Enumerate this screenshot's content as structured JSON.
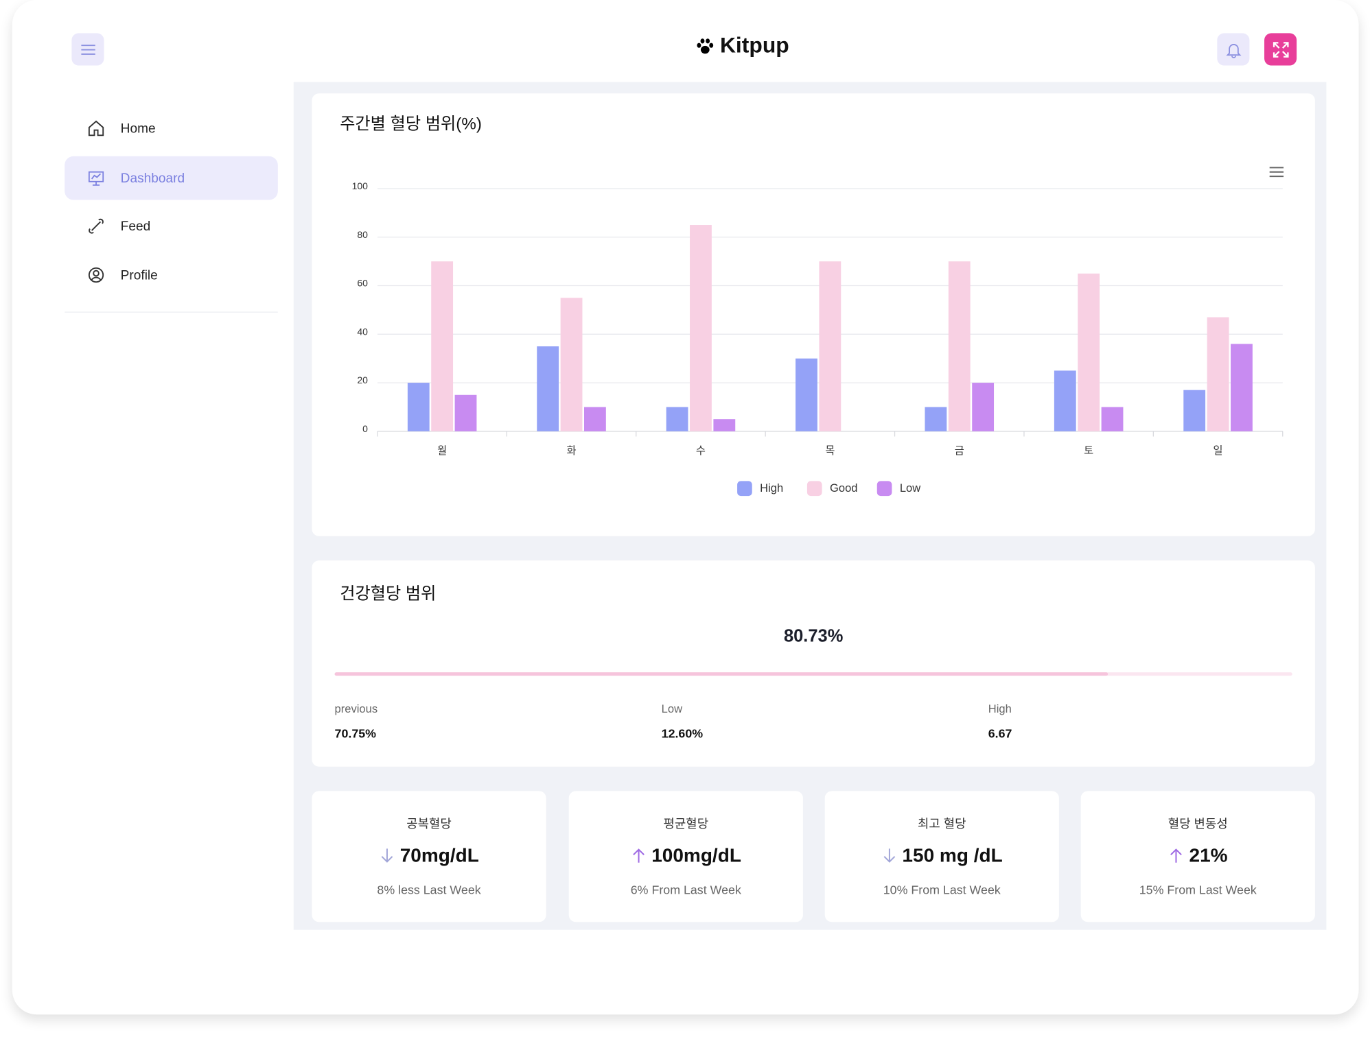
{
  "header": {
    "title": "Kitpup"
  },
  "nav": {
    "items": [
      {
        "label": "Home"
      },
      {
        "label": "Dashboard"
      },
      {
        "label": "Feed"
      },
      {
        "label": "Profile"
      }
    ]
  },
  "chart_data": {
    "type": "bar",
    "title": "주간별 혈당 범위(%)",
    "categories": [
      "월",
      "화",
      "수",
      "목",
      "금",
      "토",
      "일"
    ],
    "series": [
      {
        "name": "High",
        "color": "#94a2f7",
        "values": [
          20,
          35,
          10,
          30,
          10,
          25,
          17
        ]
      },
      {
        "name": "Good",
        "color": "#f8d0e3",
        "values": [
          70,
          55,
          85,
          70,
          70,
          65,
          47
        ]
      },
      {
        "name": "Low",
        "color": "#c88bf1",
        "values": [
          15,
          10,
          5,
          0,
          20,
          10,
          36
        ]
      }
    ],
    "ylim": [
      0,
      100
    ],
    "yticks": [
      0,
      20,
      40,
      60,
      80,
      100
    ],
    "grid": true,
    "legend": "bottom"
  },
  "health": {
    "title": "건강혈당 범위",
    "progress": {
      "value": 80.73,
      "label": "80.73%"
    },
    "stats": [
      {
        "label": "previous",
        "value": "70.75%"
      },
      {
        "label": "Low",
        "value": "12.60%"
      },
      {
        "label": "High",
        "value": "6.67"
      }
    ]
  },
  "cards": [
    {
      "title": "공복혈당",
      "value": "70mg/dL",
      "trend": "down",
      "note": "8% less Last Week"
    },
    {
      "title": "평균혈당",
      "value": "100mg/dL",
      "trend": "up",
      "note": "6% From Last Week"
    },
    {
      "title": "최고 혈당",
      "value": "150 mg /dL",
      "trend": "down",
      "note": "10% From Last Week"
    },
    {
      "title": "혈당 변동성",
      "value": "21%",
      "trend": "up",
      "note": "15% From Last Week"
    }
  ]
}
